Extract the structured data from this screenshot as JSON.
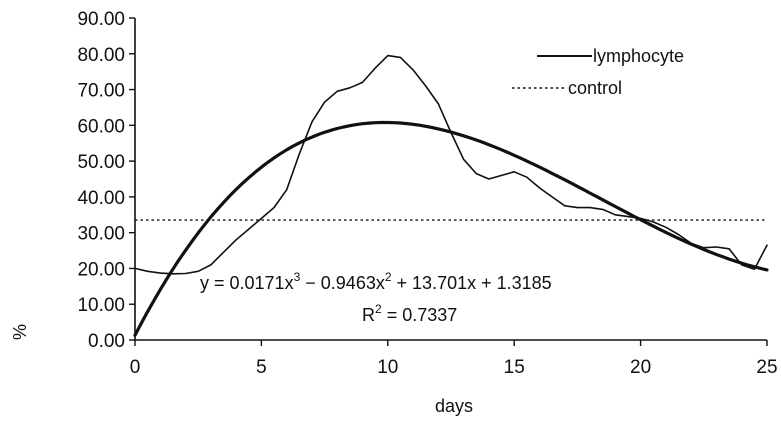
{
  "chart_data": {
    "type": "line",
    "xlabel": "days",
    "ylabel": "%",
    "xlim": [
      0,
      25
    ],
    "ylim": [
      0,
      90
    ],
    "xticks": [
      0,
      5,
      10,
      15,
      20,
      25
    ],
    "yticks": [
      0,
      10,
      20,
      30,
      40,
      50,
      60,
      70,
      80,
      90
    ],
    "ytick_format": "2dp",
    "grid": false,
    "legend_position": "top-right",
    "series": [
      {
        "name": "lymphocyte",
        "style": "solid-thin",
        "x": [
          0,
          0.5,
          1,
          1.5,
          2,
          2.5,
          3,
          3.5,
          4,
          4.5,
          5,
          5.5,
          6,
          6.5,
          7,
          7.5,
          8,
          8.5,
          9,
          9.5,
          10,
          10.5,
          11,
          11.5,
          12,
          12.5,
          13,
          13.5,
          14,
          14.5,
          15,
          15.5,
          16,
          16.5,
          17,
          17.5,
          18,
          18.5,
          19,
          19.5,
          20,
          20.5,
          21,
          21.5,
          22,
          22.5,
          23,
          23.5,
          24,
          24.5,
          25
        ],
        "values": [
          20.0,
          19.2,
          18.7,
          18.5,
          18.6,
          19.2,
          21.0,
          24.5,
          28.0,
          31.0,
          34.0,
          37.0,
          42.0,
          52.0,
          61.0,
          66.5,
          69.5,
          70.5,
          72.0,
          76.0,
          79.5,
          79.0,
          75.5,
          71.0,
          66.0,
          58.0,
          50.5,
          46.5,
          45.0,
          46.0,
          47.0,
          45.5,
          42.5,
          40.0,
          37.5,
          37.0,
          37.0,
          36.5,
          35.0,
          34.5,
          34.0,
          33.0,
          31.5,
          29.5,
          27.0,
          25.8,
          26.0,
          25.5,
          21.0,
          19.8,
          26.5
        ]
      },
      {
        "name": "",
        "style": "solid-thick",
        "fit": {
          "a3": 0.0171,
          "a2": -0.9463,
          "a1": 13.701,
          "a0": 1.3185
        }
      },
      {
        "name": "control",
        "style": "dotted",
        "x": [
          0,
          25
        ],
        "values": [
          33.5,
          33.5
        ]
      }
    ],
    "annotations": {
      "equation": {
        "lead": "y = 0.0171x",
        "exp1": "3",
        "mid": " − 0.9463x",
        "exp2": "2",
        "tail": " + 13.701x + 1.3185"
      },
      "r2": {
        "lead": "R",
        "exp": "2",
        "tail": " = 0.7337"
      }
    }
  }
}
